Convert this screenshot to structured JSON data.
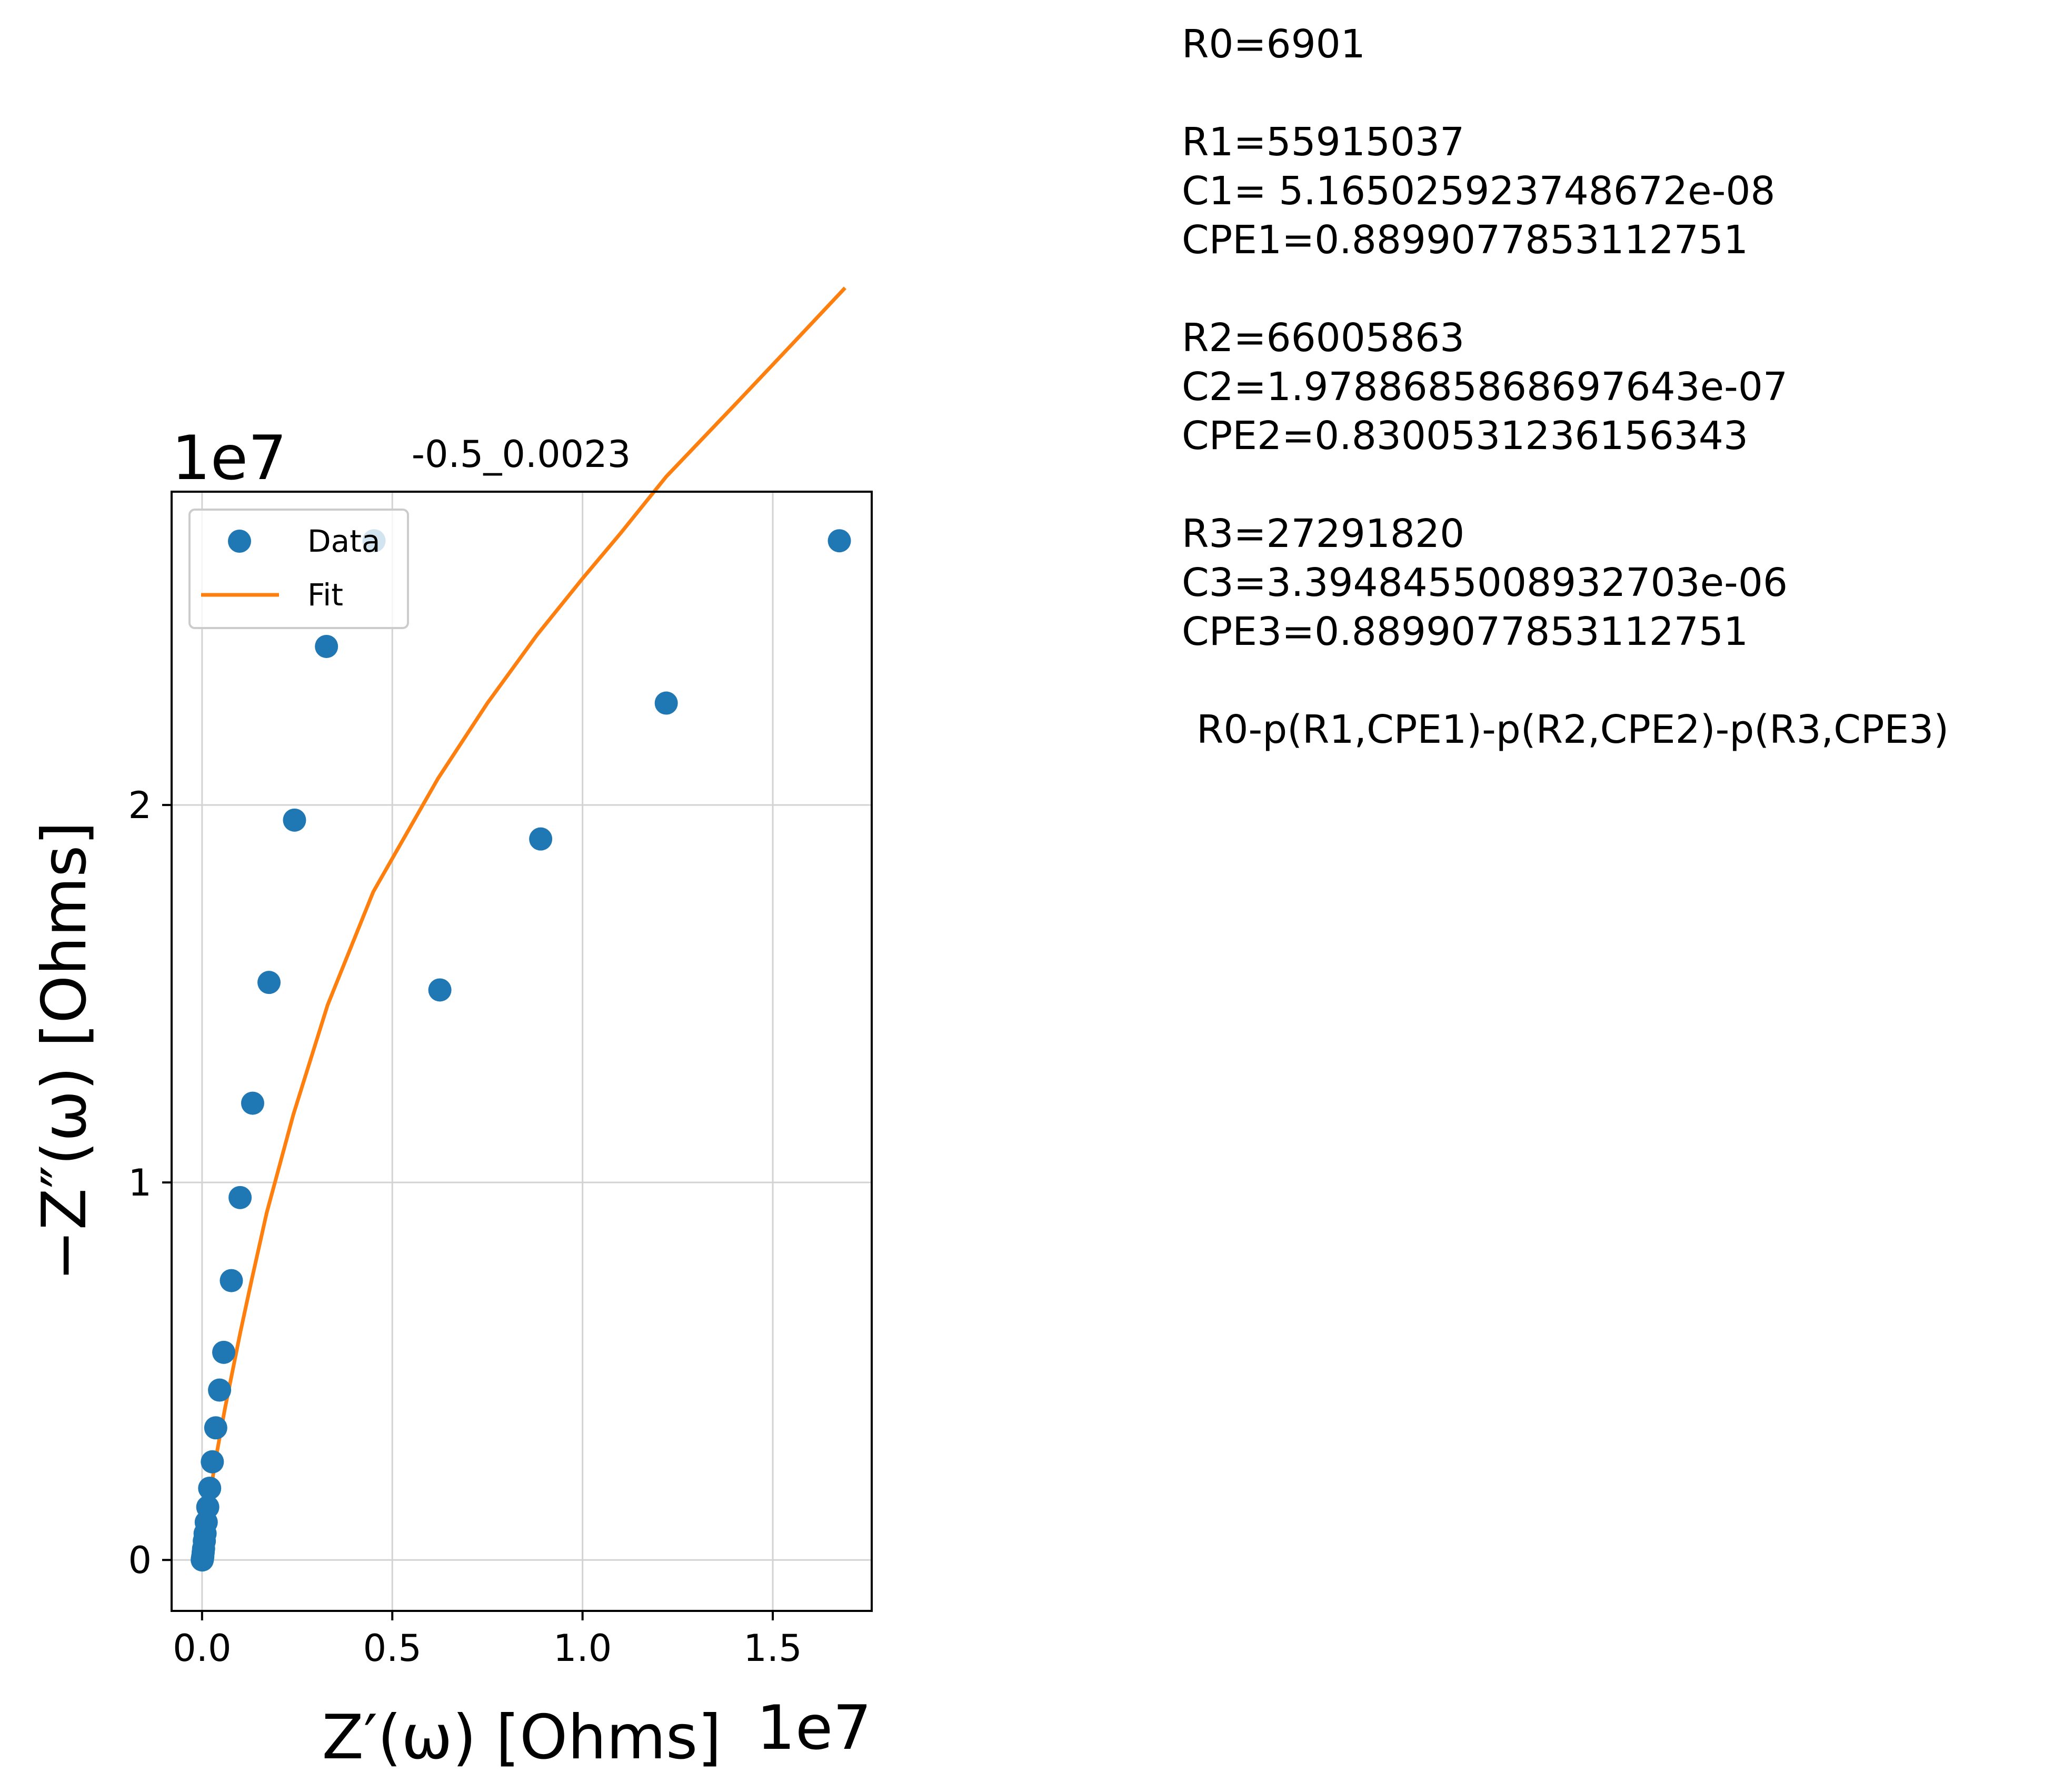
{
  "chart_data": {
    "type": "scatter",
    "title": "-0.5_0.0023",
    "xlabel": "Z′(ω) [Ohms]",
    "ylabel": "−Z″(ω) [Ohms]",
    "x_offset_label": "1e7",
    "y_offset_label": "1e7",
    "xlim": [
      -0.08,
      1.76
    ],
    "ylim": [
      -0.135,
      2.83
    ],
    "xticks": [
      0.0,
      0.5,
      1.0,
      1.5
    ],
    "xtick_labels": [
      "0.0",
      "0.5",
      "1.0",
      "1.5"
    ],
    "yticks": [
      0,
      1,
      2
    ],
    "ytick_labels": [
      "0",
      "1",
      "2"
    ],
    "grid": true,
    "legend_position": "upper-left",
    "series": [
      {
        "name": "Data",
        "kind": "markers",
        "color": "#1f77b4",
        "x": [
          0.0005,
          0.001,
          0.0015,
          0.002,
          0.003,
          0.004,
          0.006,
          0.008,
          0.011,
          0.015,
          0.02,
          0.027,
          0.036,
          0.046,
          0.057,
          0.077,
          0.1,
          0.133,
          0.176,
          0.243,
          0.327,
          0.452,
          0.625,
          0.89,
          1.22,
          1.675
        ],
        "y": [
          0.0,
          0.003,
          0.006,
          0.01,
          0.02,
          0.03,
          0.05,
          0.07,
          0.1,
          0.14,
          0.19,
          0.26,
          0.35,
          0.45,
          0.55,
          0.74,
          0.96,
          1.21,
          1.53,
          1.96,
          2.42,
          2.7,
          1.51,
          1.91,
          2.27,
          2.7
        ],
        "note": ""
      },
      {
        "name": "Fit",
        "kind": "line",
        "color": "#ff7f0e",
        "x": [
          0.0,
          0.01,
          0.02,
          0.04,
          0.06,
          0.08,
          0.1,
          0.13,
          0.17,
          0.24,
          0.33,
          0.45,
          0.62,
          0.75,
          0.88,
          1.0,
          1.1,
          1.22,
          1.4,
          1.55,
          1.69
        ],
        "y": [
          0.0,
          0.09,
          0.17,
          0.29,
          0.4,
          0.5,
          0.6,
          0.74,
          0.92,
          1.18,
          1.47,
          1.77,
          2.07,
          2.27,
          2.45,
          2.6,
          2.72,
          2.87,
          3.06,
          3.22,
          3.37
        ]
      }
    ]
  },
  "parameters": {
    "lines": [
      "R0=6901",
      "",
      "R1=55915037",
      "C1= 5.165025923748672e-08",
      "CPE1=0.8899077853112751",
      "",
      "R2=66005863",
      "C2=1.9788685868697643e-07",
      "CPE2=0.8300531236156343",
      "",
      "R3=27291820",
      "C3=3.3948455008932703e-06",
      "CPE3=0.8899077853112751",
      ""
    ],
    "circuit": "R0-p(R1,CPE1)-p(R2,CPE2)-p(R3,CPE3)"
  }
}
